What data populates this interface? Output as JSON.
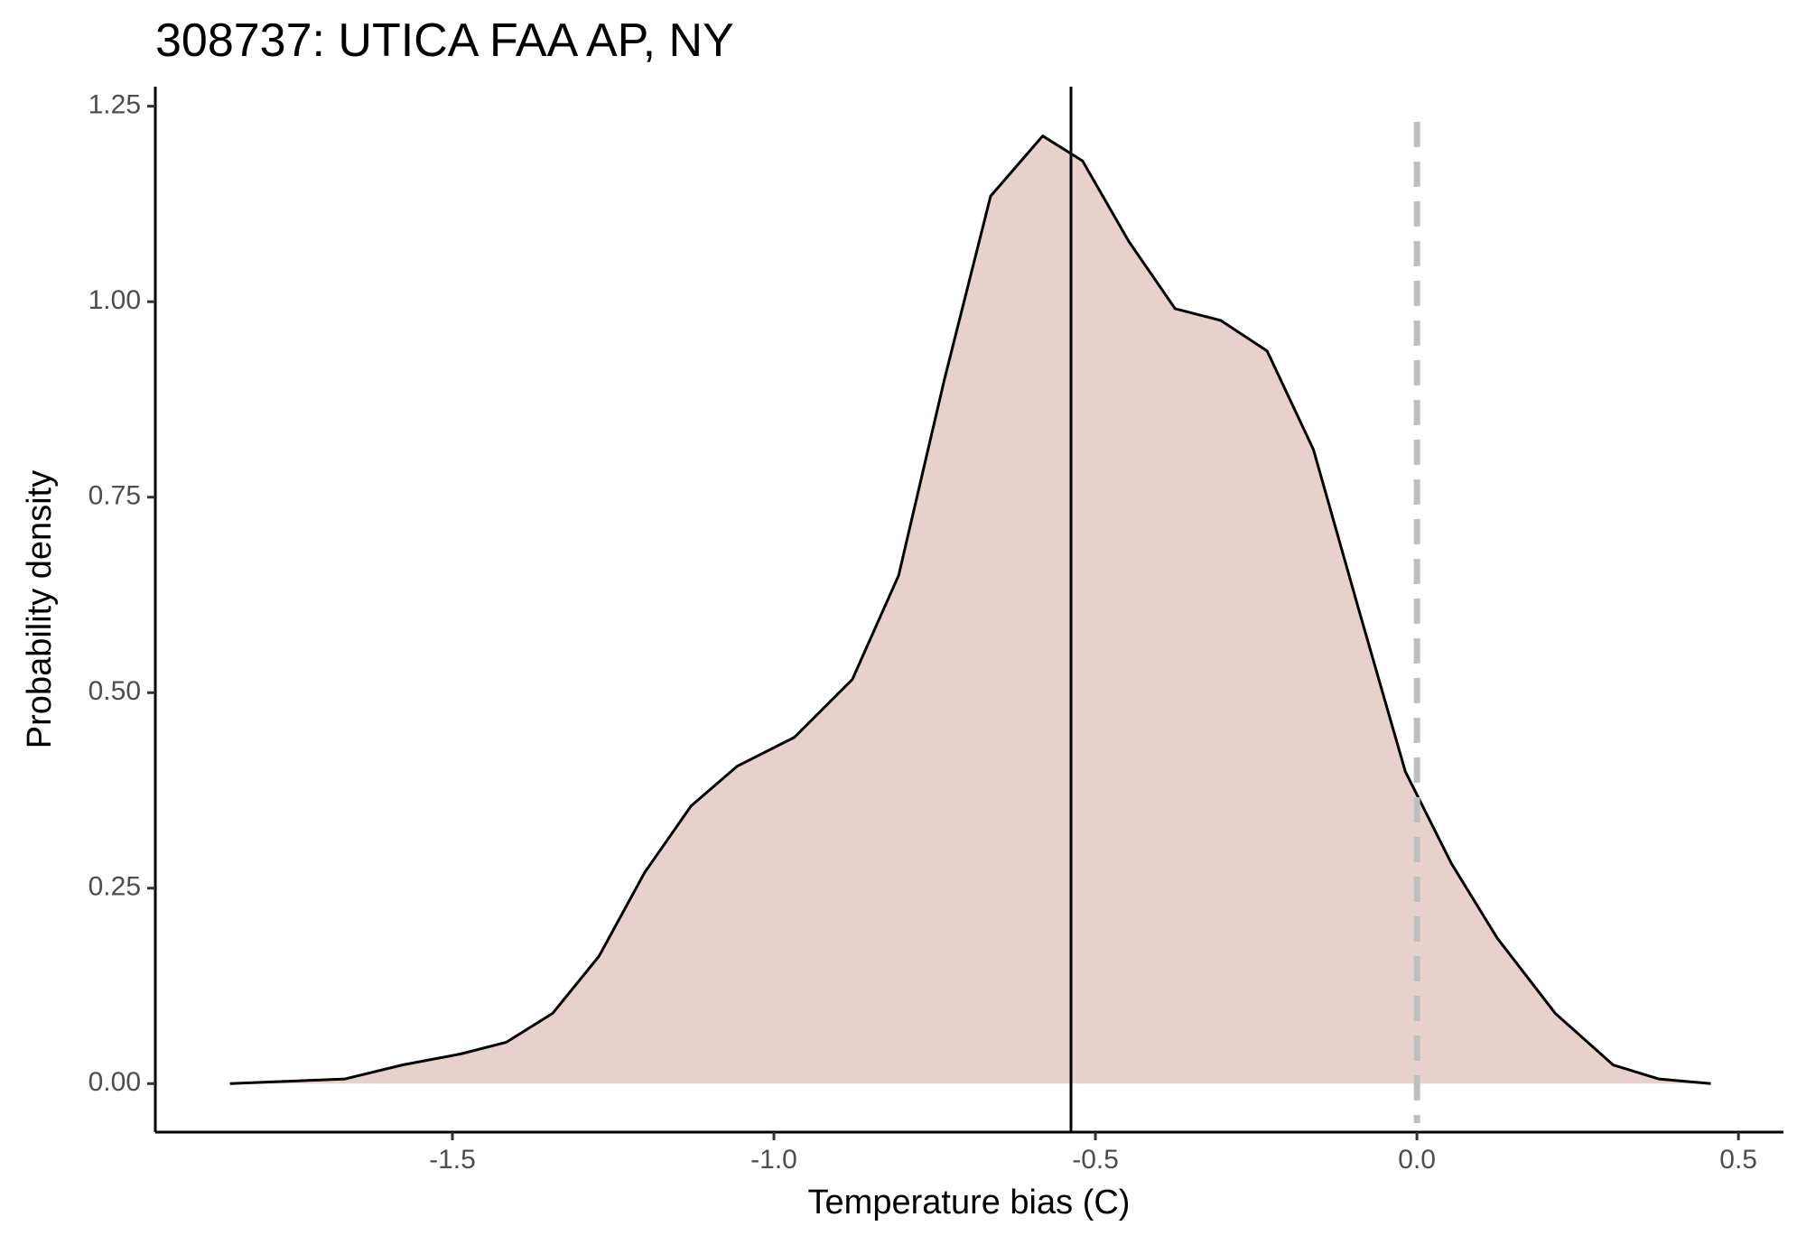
{
  "chart_data": {
    "type": "area",
    "title": "308737: UTICA FAA AP, NY",
    "x_label": "Temperature bias (C)",
    "y_label": "Probability density",
    "x": [
      -1.846,
      -1.667,
      -1.577,
      -1.487,
      -1.416,
      -1.344,
      -1.272,
      -1.201,
      -1.129,
      -1.057,
      -0.968,
      -0.878,
      -0.806,
      -0.735,
      -0.663,
      -0.582,
      -0.52,
      -0.448,
      -0.376,
      -0.305,
      -0.233,
      -0.161,
      -0.09,
      -0.018,
      0.054,
      0.125,
      0.215,
      0.305,
      0.376,
      0.457
    ],
    "values": [
      0,
      0.006,
      0.024,
      0.038,
      0.053,
      0.09,
      0.163,
      0.27,
      0.355,
      0.406,
      0.443,
      0.517,
      0.65,
      0.9,
      1.135,
      1.212,
      1.18,
      1.077,
      0.991,
      0.976,
      0.937,
      0.811,
      0.605,
      0.399,
      0.281,
      0.186,
      0.09,
      0.024,
      0.006,
      0
    ],
    "color": "#e8d1cb",
    "line_color": "#000000",
    "vlines": [
      {
        "value": -0.538,
        "style": "solid",
        "color": "#000000"
      },
      {
        "value": 0,
        "style": "dashed",
        "color": "#bebebe"
      }
    ],
    "xlim": [
      -1.962,
      0.57
    ],
    "ylim": [
      -0.062,
      1.275
    ],
    "xticks": [
      -1.5,
      {
        "value": -1,
        "label": "-1.0"
      },
      -0.5,
      {
        "value": 0,
        "label": "0.0"
      },
      0.5
    ],
    "yticks": [
      {
        "value": 0,
        "label": "0.00"
      },
      0.25,
      {
        "value": 0.5,
        "label": "0.50"
      },
      0.75,
      {
        "value": 1,
        "label": "1.00"
      },
      1.25
    ],
    "grid": false
  }
}
